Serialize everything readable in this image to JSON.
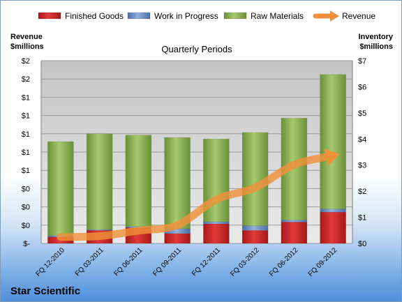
{
  "company": "Star Scientific",
  "chart_data": {
    "type": "bar",
    "stacked": true,
    "title": "Quarterly Periods",
    "categories": [
      "FQ 12-2010",
      "FQ 03-2011",
      "FQ 06-2011",
      "FQ 09-2011",
      "FQ 12-2011",
      "FQ 03-2012",
      "FQ 06-2012",
      "FQ 09-2012"
    ],
    "series": [
      {
        "name": "Finished Goods",
        "axis": "right",
        "color": "#cc2222",
        "values": [
          0.25,
          0.5,
          0.6,
          0.38,
          0.75,
          0.5,
          0.82,
          1.2
        ]
      },
      {
        "name": "Work in Progress",
        "axis": "right",
        "color": "#6d8fc7",
        "values": [
          0.05,
          0.03,
          0.05,
          0.18,
          0.08,
          0.18,
          0.08,
          0.12
        ]
      },
      {
        "name": "Raw Materials",
        "axis": "right",
        "color": "#8db353",
        "values": [
          3.6,
          3.67,
          3.5,
          3.5,
          3.17,
          3.57,
          3.9,
          5.15
        ]
      }
    ],
    "line": {
      "name": "Revenue",
      "axis": "left",
      "color": "#f0913a",
      "values": [
        0.07,
        0.08,
        0.14,
        0.2,
        0.48,
        0.61,
        0.86,
        0.96
      ]
    },
    "left_axis": {
      "title": [
        "Revenue",
        "$millions"
      ],
      "ticks": [
        "$-",
        "$0",
        "$0",
        "$0",
        "$1",
        "$1",
        "$1",
        "$1",
        "$1",
        "$2",
        "$2"
      ],
      "range": [
        0,
        2
      ]
    },
    "right_axis": {
      "title": [
        "Inventory",
        "$millions"
      ],
      "ticks": [
        "$0",
        "$1",
        "$2",
        "$3",
        "$4",
        "$5",
        "$6",
        "$7"
      ],
      "range": [
        0,
        7
      ]
    },
    "legend_position": "top",
    "grid": true
  }
}
